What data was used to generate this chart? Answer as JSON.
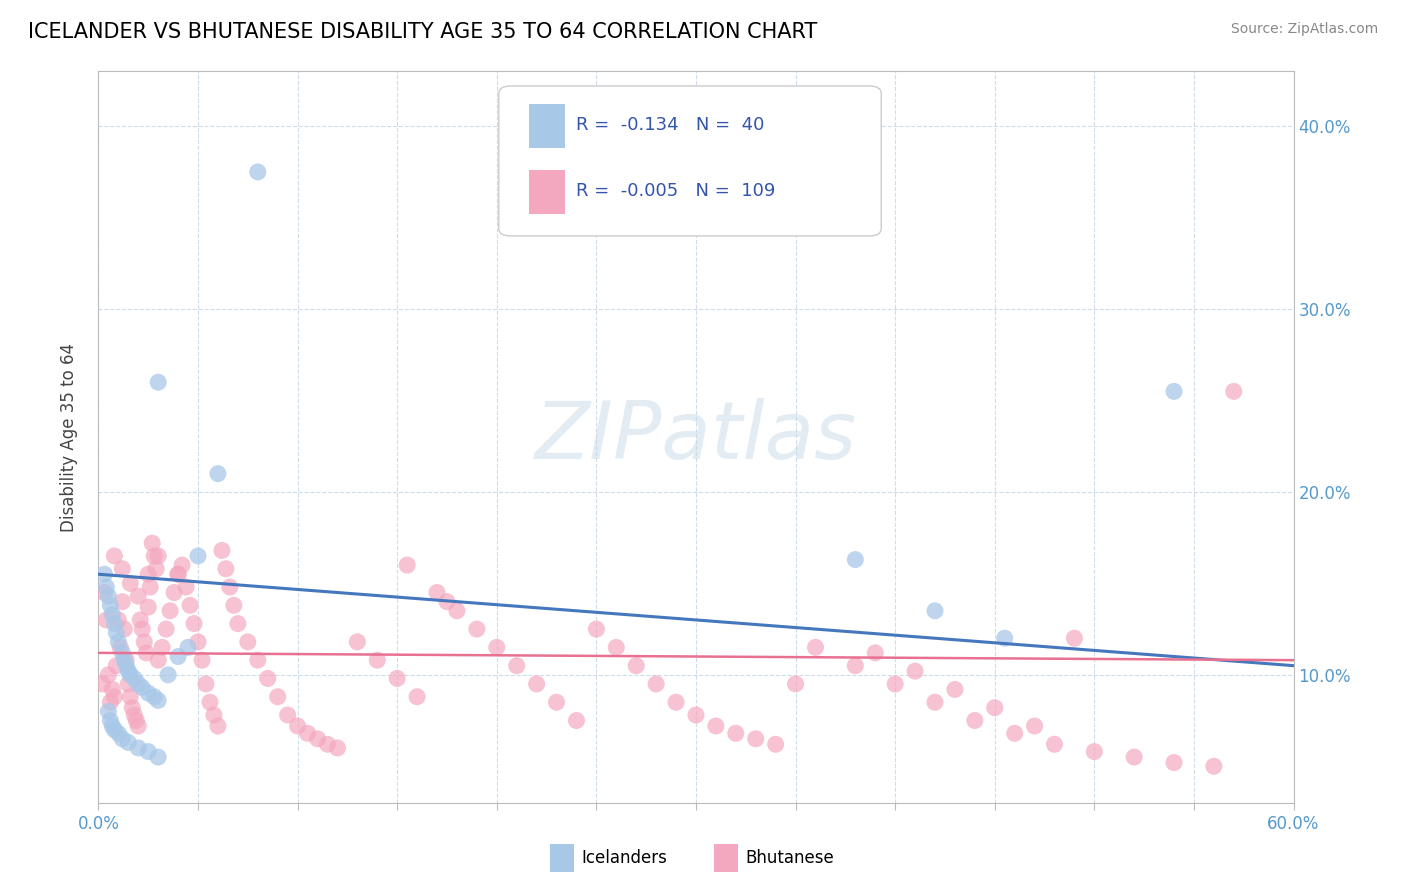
{
  "title": "ICELANDER VS BHUTANESE DISABILITY AGE 35 TO 64 CORRELATION CHART",
  "source": "Source: ZipAtlas.com",
  "ylabel": "Disability Age 35 to 64",
  "xmin": 0.0,
  "xmax": 0.6,
  "ymin": 0.03,
  "ymax": 0.43,
  "icelander_R": -0.134,
  "icelander_N": 40,
  "bhutanese_R": -0.005,
  "bhutanese_N": 109,
  "icelander_color": "#a8c8e8",
  "bhutanese_color": "#f4a8c0",
  "icelander_line_color": "#4477bb",
  "bhutanese_line_color": "#e87090",
  "watermark": "ZIPatlas",
  "title_fontsize": 15,
  "axis_label_color": "#5599cc",
  "text_color": "#3355aa"
}
